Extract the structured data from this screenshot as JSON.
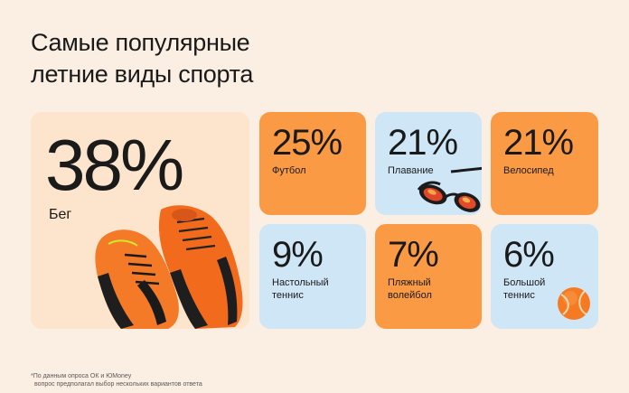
{
  "title": {
    "line1": "Самые популярные",
    "line2": "летние виды спорта"
  },
  "cards": [
    {
      "percent": "38%",
      "label_lines": [
        "Бег"
      ],
      "color": "#fde4cc",
      "icon": "sneakers-icon"
    },
    {
      "percent": "25%",
      "label_lines": [
        "Футбол"
      ],
      "color": "#fb9a45"
    },
    {
      "percent": "21%",
      "label_lines": [
        "Плавание"
      ],
      "color": "#cfe6f7",
      "icon": "swim-goggles-icon"
    },
    {
      "percent": "21%",
      "label_lines": [
        "Велосипед"
      ],
      "color": "#fb9a45"
    },
    {
      "percent": "9%",
      "label_lines": [
        "Настольный",
        "теннис"
      ],
      "color": "#cfe6f7"
    },
    {
      "percent": "7%",
      "label_lines": [
        "Пляжный",
        "волейбол"
      ],
      "color": "#fb9a45"
    },
    {
      "percent": "6%",
      "label_lines": [
        "Большой",
        "теннис"
      ],
      "color": "#cfe6f7",
      "icon": "tennis-ball-icon"
    }
  ],
  "footnote": {
    "line1": "*По данным опроса ОК и ЮMoney",
    "line2": "вопрос предполагал выбор нескольких вариантов ответа"
  }
}
